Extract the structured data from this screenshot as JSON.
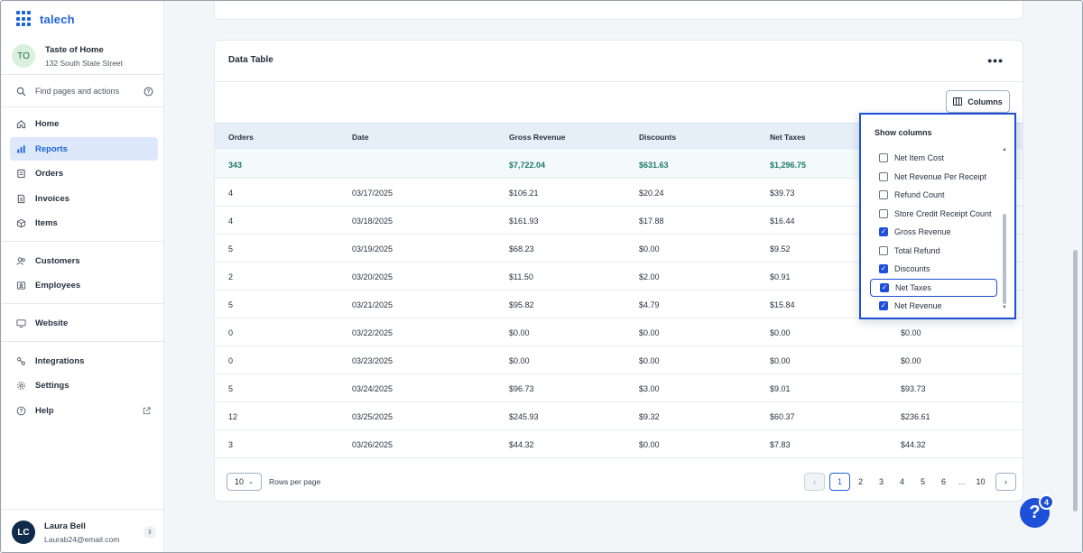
{
  "brand": {
    "name": "talech"
  },
  "store": {
    "initials": "TO",
    "name": "Taste of Home",
    "address": "132 South State Street"
  },
  "search": {
    "label": "Find pages and actions"
  },
  "nav": [
    {
      "label": "Home",
      "icon": "home-icon"
    },
    {
      "label": "Reports",
      "icon": "bar-chart-icon",
      "active": true
    },
    {
      "label": "Orders",
      "icon": "orders-icon"
    },
    {
      "label": "Invoices",
      "icon": "invoice-icon"
    },
    {
      "label": "Items",
      "icon": "box-icon"
    },
    {
      "label": "Customers",
      "icon": "users-icon"
    },
    {
      "label": "Employees",
      "icon": "id-card-icon"
    },
    {
      "label": "Website",
      "icon": "monitor-icon"
    },
    {
      "label": "Integrations",
      "icon": "plug-icon"
    },
    {
      "label": "Settings",
      "icon": "gear-icon"
    },
    {
      "label": "Help",
      "icon": "help-icon"
    }
  ],
  "user": {
    "initials": "LC",
    "name": "Laura Bell",
    "email": "Laurab24@email.com"
  },
  "card": {
    "title": "Data Table",
    "columns_button": "Columns"
  },
  "table": {
    "headers": [
      "Orders",
      "Date",
      "Gross Revenue",
      "Discounts",
      "Net Taxes"
    ],
    "total": [
      "343",
      "",
      "$7,722.04",
      "$631.63",
      "$1,296.75",
      ""
    ],
    "rows": [
      [
        "4",
        "03/17/2025",
        "$106.21",
        "$20.24",
        "$39.73",
        ""
      ],
      [
        "4",
        "03/18/2025",
        "$161.93",
        "$17.88",
        "$16.44",
        ""
      ],
      [
        "5",
        "03/19/2025",
        "$68.23",
        "$0.00",
        "$9.52",
        ""
      ],
      [
        "2",
        "03/20/2025",
        "$11.50",
        "$2.00",
        "$0.91",
        ""
      ],
      [
        "5",
        "03/21/2025",
        "$95.82",
        "$4.79",
        "$15.84",
        ""
      ],
      [
        "0",
        "03/22/2025",
        "$0.00",
        "$0.00",
        "$0.00",
        "$0.00"
      ],
      [
        "0",
        "03/23/2025",
        "$0.00",
        "$0.00",
        "$0.00",
        "$0.00"
      ],
      [
        "5",
        "03/24/2025",
        "$96.73",
        "$3.00",
        "$9.01",
        "$93.73"
      ],
      [
        "12",
        "03/25/2025",
        "$245.93",
        "$9.32",
        "$60.37",
        "$236.61"
      ],
      [
        "3",
        "03/26/2025",
        "$44.32",
        "$0.00",
        "$7.83",
        "$44.32"
      ]
    ]
  },
  "pagination": {
    "rows_per_page_value": "10",
    "rows_per_page_label": "Rows per page",
    "pages": [
      "1",
      "2",
      "3",
      "4",
      "5",
      "6",
      "...",
      "10"
    ],
    "current": "1"
  },
  "popup": {
    "title": "Show columns",
    "options": [
      {
        "label": "Net Item Cost",
        "checked": false
      },
      {
        "label": "Net Revenue Per Receipt",
        "checked": false
      },
      {
        "label": "Refund Count",
        "checked": false
      },
      {
        "label": "Store Credit Receipt Count",
        "checked": false
      },
      {
        "label": "Gross Revenue",
        "checked": true
      },
      {
        "label": "Total Refund",
        "checked": false
      },
      {
        "label": "Discounts",
        "checked": true
      },
      {
        "label": "Net Taxes",
        "checked": true,
        "focused": true
      },
      {
        "label": "Net Revenue",
        "checked": true
      }
    ]
  },
  "help_fab": {
    "symbol": "?",
    "badge": "4"
  },
  "colors": {
    "accent": "#1e63d6",
    "highlight": "#1e4fd8",
    "total_text": "#1b7a66"
  }
}
